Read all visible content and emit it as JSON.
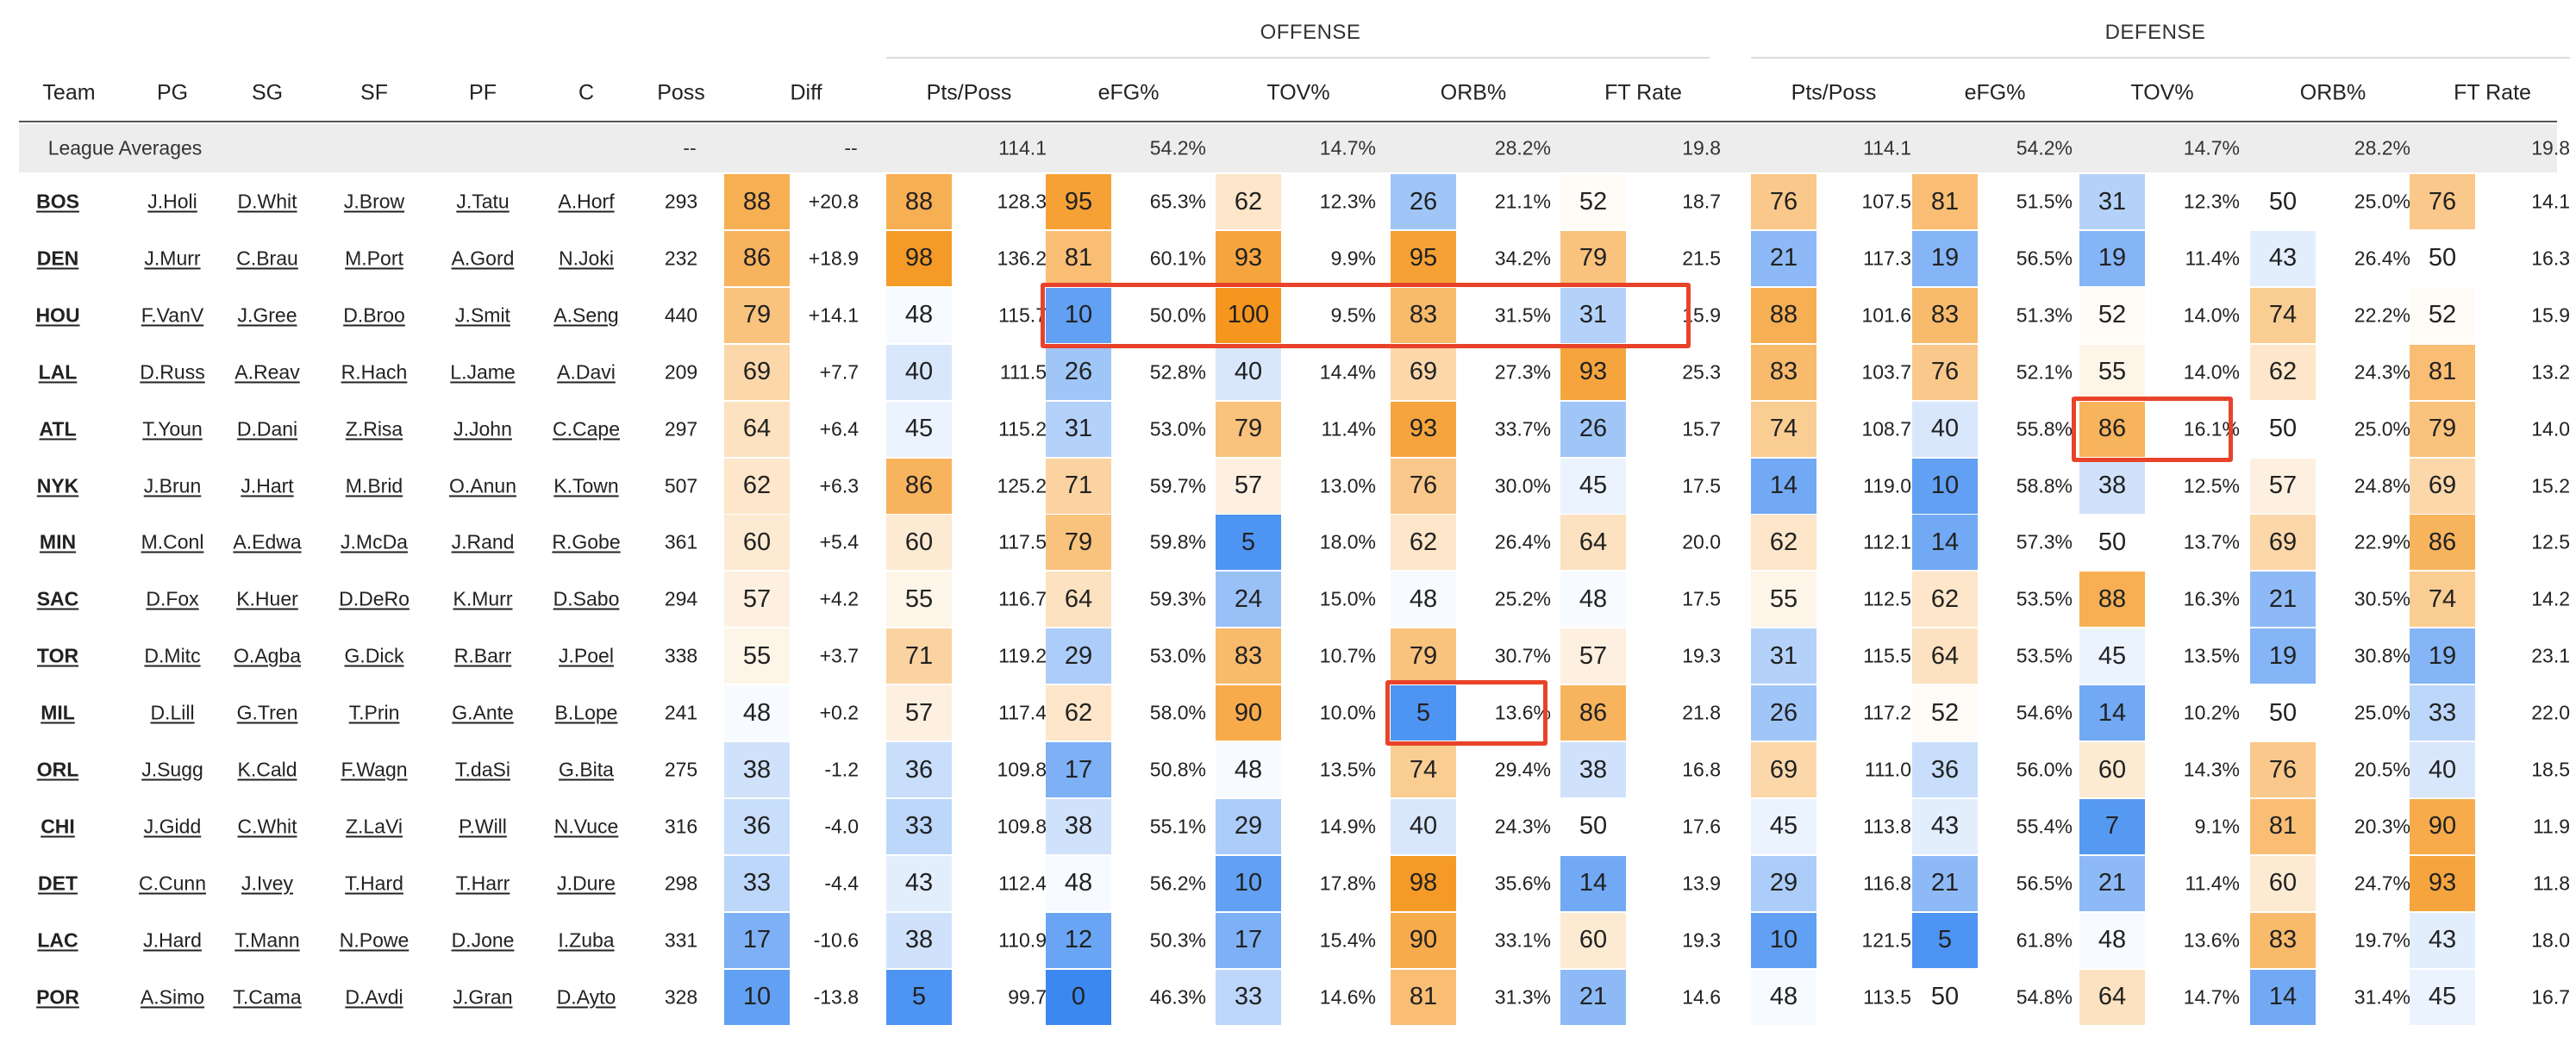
{
  "group_headers": {
    "offense": "OFFENSE",
    "defense": "DEFENSE"
  },
  "headers": [
    "Team",
    "PG",
    "SG",
    "SF",
    "PF",
    "C",
    "Poss",
    "Diff",
    "Pts/Poss",
    "eFG%",
    "TOV%",
    "ORB%",
    "FT Rate",
    "Pts/Poss",
    "eFG%",
    "TOV%",
    "ORB%",
    "FT Rate"
  ],
  "league_averages": {
    "label": "League Averages",
    "poss": "--",
    "diff": "--",
    "offense": [
      "114.1",
      "54.2%",
      "14.7%",
      "28.2%",
      "19.8"
    ],
    "defense": [
      "114.1",
      "54.2%",
      "14.7%",
      "28.2%",
      "19.8"
    ]
  },
  "colors": {
    "high": "#f5961e",
    "low": "#3a88f0",
    "mid": "#ffffff",
    "highlight": "#e8432a",
    "header_bg": "#ededed"
  },
  "chart_data": {
    "type": "table",
    "rows": [
      {
        "team": "BOS",
        "players": [
          "J.Holi",
          "D.Whit",
          "J.Brow",
          "J.Tatu",
          "A.Horf"
        ],
        "poss": "293",
        "diff_pct": 88,
        "diff": "+20.8",
        "offense": [
          [
            88,
            "128.3"
          ],
          [
            95,
            "65.3%"
          ],
          [
            62,
            "12.3%"
          ],
          [
            26,
            "21.1%"
          ],
          [
            52,
            "18.7"
          ]
        ],
        "defense": [
          [
            76,
            "107.5"
          ],
          [
            81,
            "51.5%"
          ],
          [
            31,
            "12.3%"
          ],
          [
            50,
            "25.0%"
          ],
          [
            76,
            "14.1"
          ]
        ]
      },
      {
        "team": "DEN",
        "players": [
          "J.Murr",
          "C.Brau",
          "M.Port",
          "A.Gord",
          "N.Joki"
        ],
        "poss": "232",
        "diff_pct": 86,
        "diff": "+18.9",
        "offense": [
          [
            98,
            "136.2"
          ],
          [
            81,
            "60.1%"
          ],
          [
            93,
            "9.9%"
          ],
          [
            95,
            "34.2%"
          ],
          [
            79,
            "21.5"
          ]
        ],
        "defense": [
          [
            21,
            "117.3"
          ],
          [
            19,
            "56.5%"
          ],
          [
            19,
            "11.4%"
          ],
          [
            43,
            "26.4%"
          ],
          [
            50,
            "16.3"
          ]
        ]
      },
      {
        "team": "HOU",
        "players": [
          "F.VanV",
          "J.Gree",
          "D.Broo",
          "J.Smit",
          "A.Seng"
        ],
        "poss": "440",
        "diff_pct": 79,
        "diff": "+14.1",
        "offense": [
          [
            48,
            "115.7"
          ],
          [
            10,
            "50.0%"
          ],
          [
            100,
            "9.5%"
          ],
          [
            83,
            "31.5%"
          ],
          [
            31,
            "15.9"
          ]
        ],
        "defense": [
          [
            88,
            "101.6"
          ],
          [
            83,
            "51.3%"
          ],
          [
            52,
            "14.0%"
          ],
          [
            74,
            "22.2%"
          ],
          [
            52,
            "15.9"
          ]
        ]
      },
      {
        "team": "LAL",
        "players": [
          "D.Russ",
          "A.Reav",
          "R.Hach",
          "L.Jame",
          "A.Davi"
        ],
        "poss": "209",
        "diff_pct": 69,
        "diff": "+7.7",
        "offense": [
          [
            40,
            "111.5"
          ],
          [
            26,
            "52.8%"
          ],
          [
            40,
            "14.4%"
          ],
          [
            69,
            "27.3%"
          ],
          [
            93,
            "25.3"
          ]
        ],
        "defense": [
          [
            83,
            "103.7"
          ],
          [
            76,
            "52.1%"
          ],
          [
            55,
            "14.0%"
          ],
          [
            62,
            "24.3%"
          ],
          [
            81,
            "13.2"
          ]
        ]
      },
      {
        "team": "ATL",
        "players": [
          "T.Youn",
          "D.Dani",
          "Z.Risa",
          "J.John",
          "C.Cape"
        ],
        "poss": "297",
        "diff_pct": 64,
        "diff": "+6.4",
        "offense": [
          [
            45,
            "115.2"
          ],
          [
            31,
            "53.0%"
          ],
          [
            79,
            "11.4%"
          ],
          [
            93,
            "33.7%"
          ],
          [
            26,
            "15.7"
          ]
        ],
        "defense": [
          [
            74,
            "108.7"
          ],
          [
            40,
            "55.8%"
          ],
          [
            86,
            "16.1%"
          ],
          [
            50,
            "25.0%"
          ],
          [
            79,
            "14.0"
          ]
        ]
      },
      {
        "team": "NYK",
        "players": [
          "J.Brun",
          "J.Hart",
          "M.Brid",
          "O.Anun",
          "K.Town"
        ],
        "poss": "507",
        "diff_pct": 62,
        "diff": "+6.3",
        "offense": [
          [
            86,
            "125.2"
          ],
          [
            71,
            "59.7%"
          ],
          [
            57,
            "13.0%"
          ],
          [
            76,
            "30.0%"
          ],
          [
            45,
            "17.5"
          ]
        ],
        "defense": [
          [
            14,
            "119.0"
          ],
          [
            10,
            "58.8%"
          ],
          [
            38,
            "12.5%"
          ],
          [
            57,
            "24.8%"
          ],
          [
            69,
            "15.2"
          ]
        ]
      },
      {
        "team": "MIN",
        "players": [
          "M.Conl",
          "A.Edwa",
          "J.McDa",
          "J.Rand",
          "R.Gobe"
        ],
        "poss": "361",
        "diff_pct": 60,
        "diff": "+5.4",
        "offense": [
          [
            60,
            "117.5"
          ],
          [
            79,
            "59.8%"
          ],
          [
            5,
            "18.0%"
          ],
          [
            62,
            "26.4%"
          ],
          [
            64,
            "20.0"
          ]
        ],
        "defense": [
          [
            62,
            "112.1"
          ],
          [
            14,
            "57.3%"
          ],
          [
            50,
            "13.7%"
          ],
          [
            69,
            "22.9%"
          ],
          [
            86,
            "12.5"
          ]
        ]
      },
      {
        "team": "SAC",
        "players": [
          "D.Fox",
          "K.Huer",
          "D.DeRo",
          "K.Murr",
          "D.Sabo"
        ],
        "poss": "294",
        "diff_pct": 57,
        "diff": "+4.2",
        "offense": [
          [
            55,
            "116.7"
          ],
          [
            64,
            "59.3%"
          ],
          [
            24,
            "15.0%"
          ],
          [
            48,
            "25.2%"
          ],
          [
            48,
            "17.5"
          ]
        ],
        "defense": [
          [
            55,
            "112.5"
          ],
          [
            62,
            "53.5%"
          ],
          [
            88,
            "16.3%"
          ],
          [
            21,
            "30.5%"
          ],
          [
            74,
            "14.2"
          ]
        ]
      },
      {
        "team": "TOR",
        "players": [
          "D.Mitc",
          "O.Agba",
          "G.Dick",
          "R.Barr",
          "J.Poel"
        ],
        "poss": "338",
        "diff_pct": 55,
        "diff": "+3.7",
        "offense": [
          [
            71,
            "119.2"
          ],
          [
            29,
            "53.0%"
          ],
          [
            83,
            "10.7%"
          ],
          [
            79,
            "30.7%"
          ],
          [
            57,
            "19.3"
          ]
        ],
        "defense": [
          [
            31,
            "115.5"
          ],
          [
            64,
            "53.5%"
          ],
          [
            45,
            "13.5%"
          ],
          [
            19,
            "30.8%"
          ],
          [
            19,
            "23.1"
          ]
        ]
      },
      {
        "team": "MIL",
        "players": [
          "D.Lill",
          "G.Tren",
          "T.Prin",
          "G.Ante",
          "B.Lope"
        ],
        "poss": "241",
        "diff_pct": 48,
        "diff": "+0.2",
        "offense": [
          [
            57,
            "117.4"
          ],
          [
            62,
            "58.0%"
          ],
          [
            90,
            "10.0%"
          ],
          [
            5,
            "13.6%"
          ],
          [
            86,
            "21.8"
          ]
        ],
        "defense": [
          [
            26,
            "117.2"
          ],
          [
            52,
            "54.6%"
          ],
          [
            14,
            "10.2%"
          ],
          [
            50,
            "25.0%"
          ],
          [
            33,
            "22.0"
          ]
        ]
      },
      {
        "team": "ORL",
        "players": [
          "J.Sugg",
          "K.Cald",
          "F.Wagn",
          "T.daSi",
          "G.Bita"
        ],
        "poss": "275",
        "diff_pct": 38,
        "diff": "-1.2",
        "offense": [
          [
            36,
            "109.8"
          ],
          [
            17,
            "50.8%"
          ],
          [
            48,
            "13.5%"
          ],
          [
            74,
            "29.4%"
          ],
          [
            38,
            "16.8"
          ]
        ],
        "defense": [
          [
            69,
            "111.0"
          ],
          [
            36,
            "56.0%"
          ],
          [
            60,
            "14.3%"
          ],
          [
            76,
            "20.5%"
          ],
          [
            40,
            "18.5"
          ]
        ]
      },
      {
        "team": "CHI",
        "players": [
          "J.Gidd",
          "C.Whit",
          "Z.LaVi",
          "P.Will",
          "N.Vuce"
        ],
        "poss": "316",
        "diff_pct": 36,
        "diff": "-4.0",
        "offense": [
          [
            33,
            "109.8"
          ],
          [
            38,
            "55.1%"
          ],
          [
            29,
            "14.9%"
          ],
          [
            40,
            "24.3%"
          ],
          [
            50,
            "17.6"
          ]
        ],
        "defense": [
          [
            45,
            "113.8"
          ],
          [
            43,
            "55.4%"
          ],
          [
            7,
            "9.1%"
          ],
          [
            81,
            "20.3%"
          ],
          [
            90,
            "11.9"
          ]
        ]
      },
      {
        "team": "DET",
        "players": [
          "C.Cunn",
          "J.Ivey",
          "T.Hard",
          "T.Harr",
          "J.Dure"
        ],
        "poss": "298",
        "diff_pct": 33,
        "diff": "-4.4",
        "offense": [
          [
            43,
            "112.4"
          ],
          [
            48,
            "56.2%"
          ],
          [
            10,
            "17.8%"
          ],
          [
            98,
            "35.6%"
          ],
          [
            14,
            "13.9"
          ]
        ],
        "defense": [
          [
            29,
            "116.8"
          ],
          [
            21,
            "56.5%"
          ],
          [
            21,
            "11.4%"
          ],
          [
            60,
            "24.7%"
          ],
          [
            93,
            "11.8"
          ]
        ]
      },
      {
        "team": "LAC",
        "players": [
          "J.Hard",
          "T.Mann",
          "N.Powe",
          "D.Jone",
          "I.Zuba"
        ],
        "poss": "331",
        "diff_pct": 17,
        "diff": "-10.6",
        "offense": [
          [
            38,
            "110.9"
          ],
          [
            12,
            "50.3%"
          ],
          [
            17,
            "15.4%"
          ],
          [
            90,
            "33.1%"
          ],
          [
            60,
            "19.3"
          ]
        ],
        "defense": [
          [
            10,
            "121.5"
          ],
          [
            5,
            "61.8%"
          ],
          [
            48,
            "13.6%"
          ],
          [
            83,
            "19.7%"
          ],
          [
            43,
            "18.0"
          ]
        ]
      },
      {
        "team": "POR",
        "players": [
          "A.Simo",
          "T.Cama",
          "D.Avdi",
          "J.Gran",
          "D.Ayto"
        ],
        "poss": "328",
        "diff_pct": 10,
        "diff": "-13.8",
        "offense": [
          [
            5,
            "99.7"
          ],
          [
            0,
            "46.3%"
          ],
          [
            33,
            "14.6%"
          ],
          [
            81,
            "31.3%"
          ],
          [
            21,
            "14.6"
          ]
        ],
        "defense": [
          [
            48,
            "113.5"
          ],
          [
            50,
            "54.8%"
          ],
          [
            64,
            "14.7%"
          ],
          [
            14,
            "31.4%"
          ],
          [
            45,
            "16.7"
          ]
        ]
      }
    ]
  }
}
